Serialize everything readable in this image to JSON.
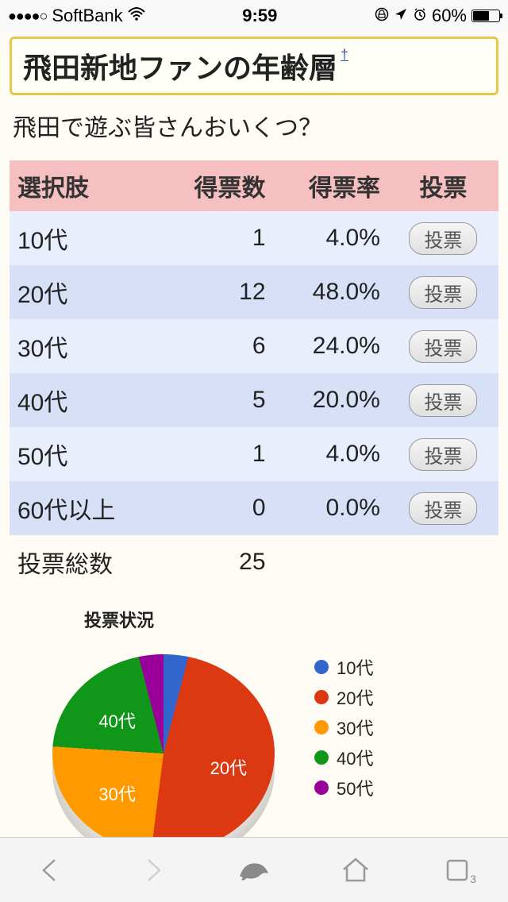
{
  "status": {
    "signal_dots": "●●●●○",
    "carrier": "SoftBank",
    "time": "9:59",
    "battery_pct": "60%",
    "battery_fill": 60
  },
  "title": "飛田新地ファンの年齢層",
  "title_marker": "†",
  "subtitle": "飛田で遊ぶ皆さんおいくつ？",
  "table": {
    "columns": [
      "選択肢",
      "得票数",
      "得票率",
      "投票"
    ],
    "rows": [
      {
        "label": "10代",
        "votes": "1",
        "pct": "4.0%"
      },
      {
        "label": "20代",
        "votes": "12",
        "pct": "48.0%"
      },
      {
        "label": "30代",
        "votes": "6",
        "pct": "24.0%"
      },
      {
        "label": "40代",
        "votes": "5",
        "pct": "20.0%"
      },
      {
        "label": "50代",
        "votes": "1",
        "pct": "4.0%"
      },
      {
        "label": "60代以上",
        "votes": "0",
        "pct": "0.0%"
      }
    ],
    "vote_button_label": "投票",
    "total_label": "投票総数",
    "total_value": "25",
    "header_bg": "#f7c0c0",
    "row_even_bg": "#e8eefb",
    "row_odd_bg": "#d8e0f7"
  },
  "chart": {
    "type": "pie",
    "title": "投票状況",
    "slices": [
      {
        "label": "10代",
        "value": 4.0,
        "color": "#3366cc"
      },
      {
        "label": "20代",
        "value": 48.0,
        "color": "#dc3912"
      },
      {
        "label": "30代",
        "value": 24.0,
        "color": "#ff9900"
      },
      {
        "label": "40代",
        "value": 20.0,
        "color": "#109618"
      },
      {
        "label": "50代",
        "value": 4.0,
        "color": "#990099"
      }
    ],
    "legend_labels": [
      "10代",
      "20代",
      "30代",
      "40代",
      "50代"
    ],
    "background_color": "#fefcf4",
    "label_fontsize": 22,
    "inner_labels": [
      "20代",
      "30代",
      "40代"
    ]
  },
  "toolbar": {
    "tab_badge": "3"
  }
}
